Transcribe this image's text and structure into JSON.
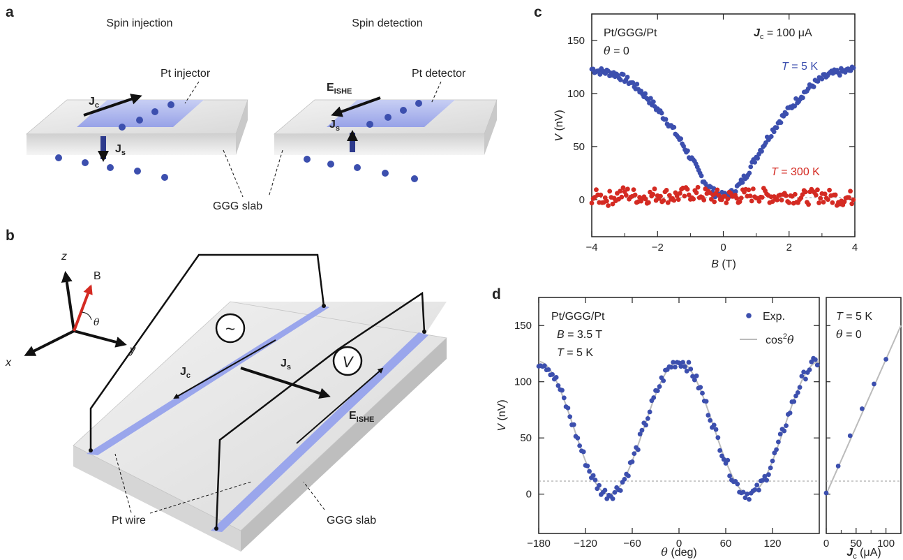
{
  "panels": {
    "a": {
      "letter": "a",
      "left_title": "Spin injection",
      "right_title": "Spin detection",
      "injector_label": "Pt injector",
      "detector_label": "Pt detector",
      "slab_label": "GGG slab",
      "jc_main": "J",
      "jc_sub": "c",
      "js_main": "J",
      "js_sub": "s",
      "e_main": "E",
      "e_sub": "ISHE"
    },
    "b": {
      "letter": "b",
      "axis_z": "z",
      "axis_x": "x",
      "axis_y": "y",
      "b_label": "B",
      "theta_label": "θ",
      "jc_main": "J",
      "jc_sub": "c",
      "js_main": "J",
      "js_sub": "s",
      "e_main": "E",
      "e_sub": "ISHE",
      "source_symbol": "~",
      "meter_symbol": "V",
      "wire_label": "Pt wire",
      "slab_label": "GGG slab"
    },
    "c": {
      "letter": "c",
      "sample": "Pt/GGG/Pt",
      "theta_sym": "θ",
      "theta_val": " = 0",
      "jc_main": "J",
      "jc_sub": "c",
      "jc_val": " = 100 μA",
      "t5_sym": "T",
      "t5_val": " = 5 K",
      "t300_sym": "T",
      "t300_val": " = 300 K",
      "ylabel_sym": "V",
      "ylabel_unit": " (nV)",
      "xlabel_sym": "B",
      "xlabel_unit": " (T)"
    },
    "d": {
      "letter": "d",
      "sample": "Pt/GGG/Pt",
      "b_sym": "B",
      "b_val": " = 3.5 T",
      "t_sym": "T",
      "t_val": " = 5 K",
      "legend_exp": "Exp.",
      "legend_fit_a": "cos",
      "legend_fit_sup": "2",
      "legend_fit_b": "θ",
      "right_t_sym": "T",
      "right_t_val": " = 5 K",
      "right_theta_sym": "θ",
      "right_theta_val": " = 0",
      "ylabel_sym": "V",
      "ylabel_unit": " (nV)",
      "xlabel_sym": "θ",
      "xlabel_unit": " (deg)",
      "xlabel2_main": "J",
      "xlabel2_sub": "c",
      "xlabel2_unit": " (μA)"
    }
  },
  "colors": {
    "blue": "#3c4fae",
    "red": "#d42a22",
    "fit": "#bbbbbb",
    "wire": "#9aa6ec"
  },
  "chart_data": [
    {
      "type": "scatter",
      "panel": "c",
      "xlim": [
        -4,
        4
      ],
      "ylim": [
        -35,
        175
      ],
      "xticks": [
        -4,
        -2,
        0,
        2,
        4
      ],
      "yticks": [
        0,
        50,
        100,
        150
      ],
      "grid": false,
      "series": [
        {
          "color": "#3c4fae",
          "label": "T = 5 K",
          "points": [
            [
              -4.0,
              123
            ],
            [
              -3.75,
              121
            ],
            [
              -3.5,
              120
            ],
            [
              -3.25,
              118
            ],
            [
              -3.0,
              114
            ],
            [
              -2.75,
              109
            ],
            [
              -2.5,
              102
            ],
            [
              -2.25,
              94
            ],
            [
              -2.0,
              85
            ],
            [
              -1.75,
              76
            ],
            [
              -1.5,
              65
            ],
            [
              -1.25,
              53
            ],
            [
              -1.0,
              40
            ],
            [
              -0.75,
              26
            ],
            [
              -0.5,
              14
            ],
            [
              -0.25,
              6
            ],
            [
              0.0,
              3
            ],
            [
              0.25,
              6
            ],
            [
              0.5,
              14
            ],
            [
              0.75,
              26
            ],
            [
              1.0,
              40
            ],
            [
              1.25,
              53
            ],
            [
              1.5,
              65
            ],
            [
              1.75,
              76
            ],
            [
              2.0,
              85
            ],
            [
              2.25,
              94
            ],
            [
              2.5,
              102
            ],
            [
              2.75,
              109
            ],
            [
              3.0,
              114
            ],
            [
              3.25,
              118
            ],
            [
              3.5,
              120
            ],
            [
              3.75,
              121
            ],
            [
              4.0,
              123
            ]
          ]
        },
        {
          "color": "#d42a22",
          "label": "T = 300 K",
          "points": [
            [
              -4.0,
              3
            ],
            [
              -3.5,
              1
            ],
            [
              -3.0,
              6
            ],
            [
              -2.5,
              2
            ],
            [
              -2.0,
              5
            ],
            [
              -1.5,
              3
            ],
            [
              -1.0,
              6
            ],
            [
              -0.5,
              4
            ],
            [
              0.0,
              2
            ],
            [
              0.5,
              3
            ],
            [
              1.0,
              5
            ],
            [
              1.5,
              3
            ],
            [
              2.0,
              4
            ],
            [
              2.5,
              2
            ],
            [
              3.0,
              4
            ],
            [
              3.5,
              1
            ],
            [
              4.0,
              2
            ]
          ]
        }
      ]
    },
    {
      "type": "scatter",
      "panel": "d-left",
      "xlim": [
        -180,
        180
      ],
      "ylim": [
        -35,
        175
      ],
      "xticks": [
        -180,
        -120,
        -60,
        0,
        60,
        120
      ],
      "yticks": [
        0,
        50,
        100,
        150
      ],
      "grid": false,
      "amplitude": 118,
      "series": [
        {
          "color": "#3c4fae",
          "name": "Exp.",
          "points": [
            [
              -180,
              119
            ],
            [
              -165,
              110
            ],
            [
              -150,
              89
            ],
            [
              -135,
              59
            ],
            [
              -120,
              30
            ],
            [
              -105,
              8
            ],
            [
              -90,
              0
            ],
            [
              -75,
              8
            ],
            [
              -60,
              30
            ],
            [
              -45,
              59
            ],
            [
              -30,
              89
            ],
            [
              -15,
              110
            ],
            [
              0,
              118
            ],
            [
              15,
              110
            ],
            [
              30,
              89
            ],
            [
              45,
              59
            ],
            [
              60,
              30
            ],
            [
              75,
              8
            ],
            [
              90,
              0
            ],
            [
              105,
              8
            ],
            [
              120,
              30
            ],
            [
              135,
              59
            ],
            [
              150,
              89
            ],
            [
              165,
              110
            ],
            [
              180,
              120
            ]
          ]
        },
        {
          "color": "#bbbbbb",
          "name": "cos2θ",
          "curve": "cos2"
        }
      ]
    },
    {
      "type": "scatter",
      "panel": "d-right",
      "xlim": [
        0,
        125
      ],
      "ylim": [
        -35,
        175
      ],
      "xticks": [
        0,
        50,
        100
      ],
      "grid": false,
      "series": [
        {
          "color": "#3c4fae",
          "points": [
            [
              0,
              1
            ],
            [
              20,
              25
            ],
            [
              40,
              52
            ],
            [
              60,
              76
            ],
            [
              80,
              98
            ],
            [
              100,
              120
            ]
          ]
        },
        {
          "color": "#bbbbbb",
          "fit": "linear",
          "slope": 1.2
        }
      ]
    }
  ]
}
